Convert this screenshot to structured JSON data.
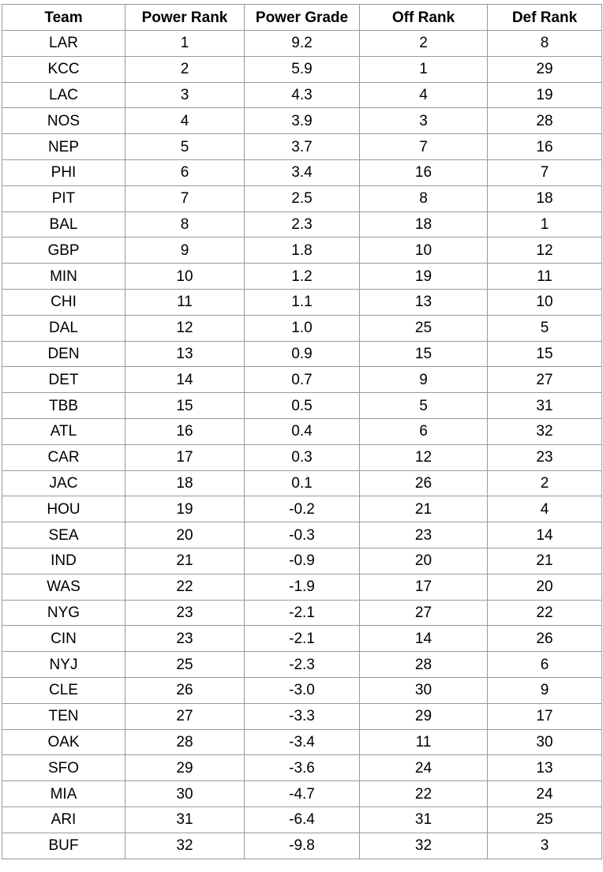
{
  "table": {
    "headers": [
      "Team",
      "Power Rank",
      "Power Grade",
      "Off Rank",
      "Def Rank"
    ],
    "rows": [
      [
        "LAR",
        "1",
        "9.2",
        "2",
        "8"
      ],
      [
        "KCC",
        "2",
        "5.9",
        "1",
        "29"
      ],
      [
        "LAC",
        "3",
        "4.3",
        "4",
        "19"
      ],
      [
        "NOS",
        "4",
        "3.9",
        "3",
        "28"
      ],
      [
        "NEP",
        "5",
        "3.7",
        "7",
        "16"
      ],
      [
        "PHI",
        "6",
        "3.4",
        "16",
        "7"
      ],
      [
        "PIT",
        "7",
        "2.5",
        "8",
        "18"
      ],
      [
        "BAL",
        "8",
        "2.3",
        "18",
        "1"
      ],
      [
        "GBP",
        "9",
        "1.8",
        "10",
        "12"
      ],
      [
        "MIN",
        "10",
        "1.2",
        "19",
        "11"
      ],
      [
        "CHI",
        "11",
        "1.1",
        "13",
        "10"
      ],
      [
        "DAL",
        "12",
        "1.0",
        "25",
        "5"
      ],
      [
        "DEN",
        "13",
        "0.9",
        "15",
        "15"
      ],
      [
        "DET",
        "14",
        "0.7",
        "9",
        "27"
      ],
      [
        "TBB",
        "15",
        "0.5",
        "5",
        "31"
      ],
      [
        "ATL",
        "16",
        "0.4",
        "6",
        "32"
      ],
      [
        "CAR",
        "17",
        "0.3",
        "12",
        "23"
      ],
      [
        "JAC",
        "18",
        "0.1",
        "26",
        "2"
      ],
      [
        "HOU",
        "19",
        "-0.2",
        "21",
        "4"
      ],
      [
        "SEA",
        "20",
        "-0.3",
        "23",
        "14"
      ],
      [
        "IND",
        "21",
        "-0.9",
        "20",
        "21"
      ],
      [
        "WAS",
        "22",
        "-1.9",
        "17",
        "20"
      ],
      [
        "NYG",
        "23",
        "-2.1",
        "27",
        "22"
      ],
      [
        "CIN",
        "23",
        "-2.1",
        "14",
        "26"
      ],
      [
        "NYJ",
        "25",
        "-2.3",
        "28",
        "6"
      ],
      [
        "CLE",
        "26",
        "-3.0",
        "30",
        "9"
      ],
      [
        "TEN",
        "27",
        "-3.3",
        "29",
        "17"
      ],
      [
        "OAK",
        "28",
        "-3.4",
        "11",
        "30"
      ],
      [
        "SFO",
        "29",
        "-3.6",
        "24",
        "13"
      ],
      [
        "MIA",
        "30",
        "-4.7",
        "22",
        "24"
      ],
      [
        "ARI",
        "31",
        "-6.4",
        "31",
        "25"
      ],
      [
        "BUF",
        "32",
        "-9.8",
        "32",
        "3"
      ]
    ]
  }
}
